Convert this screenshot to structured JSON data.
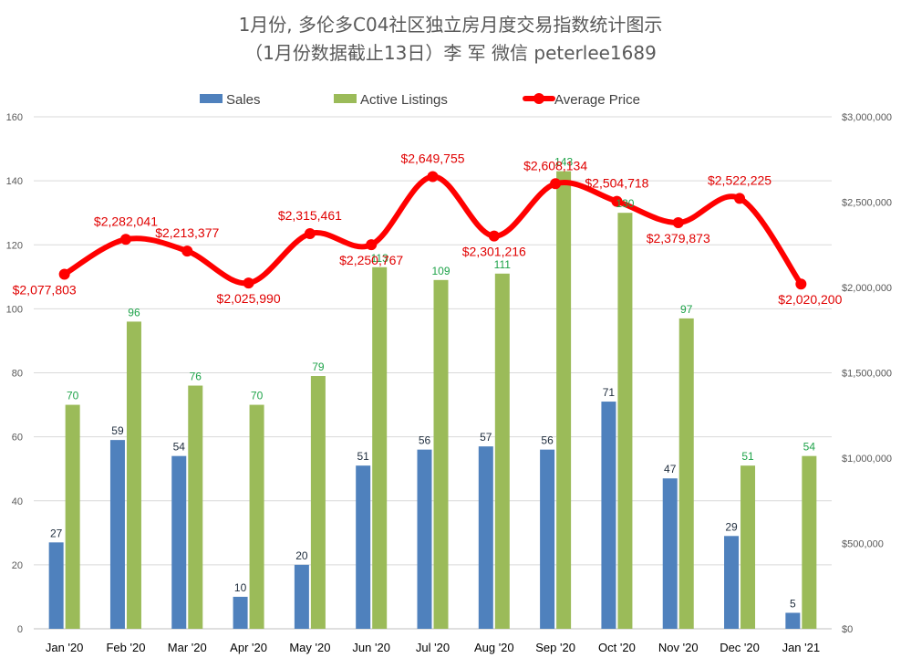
{
  "chart_data": {
    "type": "bar",
    "title": "1月份, 多伦多C04社区独立房月度交易指数统计图示",
    "subtitle": "（1月份数据截止13日）李 军  微信  peterlee1689",
    "categories": [
      "Jan '20",
      "Feb '20",
      "Mar '20",
      "Apr '20",
      "May '20",
      "Jun '20",
      "Jul '20",
      "Aug '20",
      "Sep '20",
      "Oct '20",
      "Nov '20",
      "Dec '20",
      "Jan '21"
    ],
    "series": [
      {
        "name": "Sales",
        "type": "bar",
        "axis": "left",
        "color": "#4f81bd",
        "values": [
          27,
          59,
          54,
          10,
          20,
          51,
          56,
          57,
          56,
          71,
          47,
          29,
          5
        ]
      },
      {
        "name": "Active Listings",
        "type": "bar",
        "axis": "left",
        "color": "#9bbb59",
        "values": [
          70,
          96,
          76,
          70,
          79,
          113,
          109,
          111,
          143,
          130,
          97,
          51,
          54
        ],
        "labels": [
          "70",
          "96",
          "76",
          "70",
          "79",
          "113",
          "109",
          "111",
          "143",
          "130",
          "97",
          "51",
          "54"
        ]
      },
      {
        "name": "Average Price",
        "type": "line",
        "axis": "right",
        "color": "#ff0000",
        "values": [
          2077803,
          2282041,
          2213377,
          2025990,
          2315461,
          2250767,
          2649755,
          2301216,
          2608134,
          2504718,
          2379873,
          2522225,
          2020200
        ],
        "labels": [
          "$2,077,803",
          "$2,282,041",
          "$2,213,377",
          "$2,025,990",
          "$2,315,461",
          "$2,250,767",
          "$2,649,755",
          "$2,301,216",
          "$2,608,134",
          "$2,504,718",
          "$2,379,873",
          "$2,522,225",
          "$2,020,200"
        ]
      }
    ],
    "y_left": {
      "min": 0,
      "max": 160,
      "ticks": [
        "0",
        "20",
        "40",
        "60",
        "80",
        "100",
        "120",
        "140",
        "160"
      ]
    },
    "y_right": {
      "min": 0,
      "max": 3000000,
      "ticks": [
        "$0",
        "$500,000",
        "$1,000,000",
        "$1,500,000",
        "$2,000,000",
        "$2,500,000",
        "$3,000,000"
      ]
    },
    "grid": true,
    "legend_position": "top"
  }
}
